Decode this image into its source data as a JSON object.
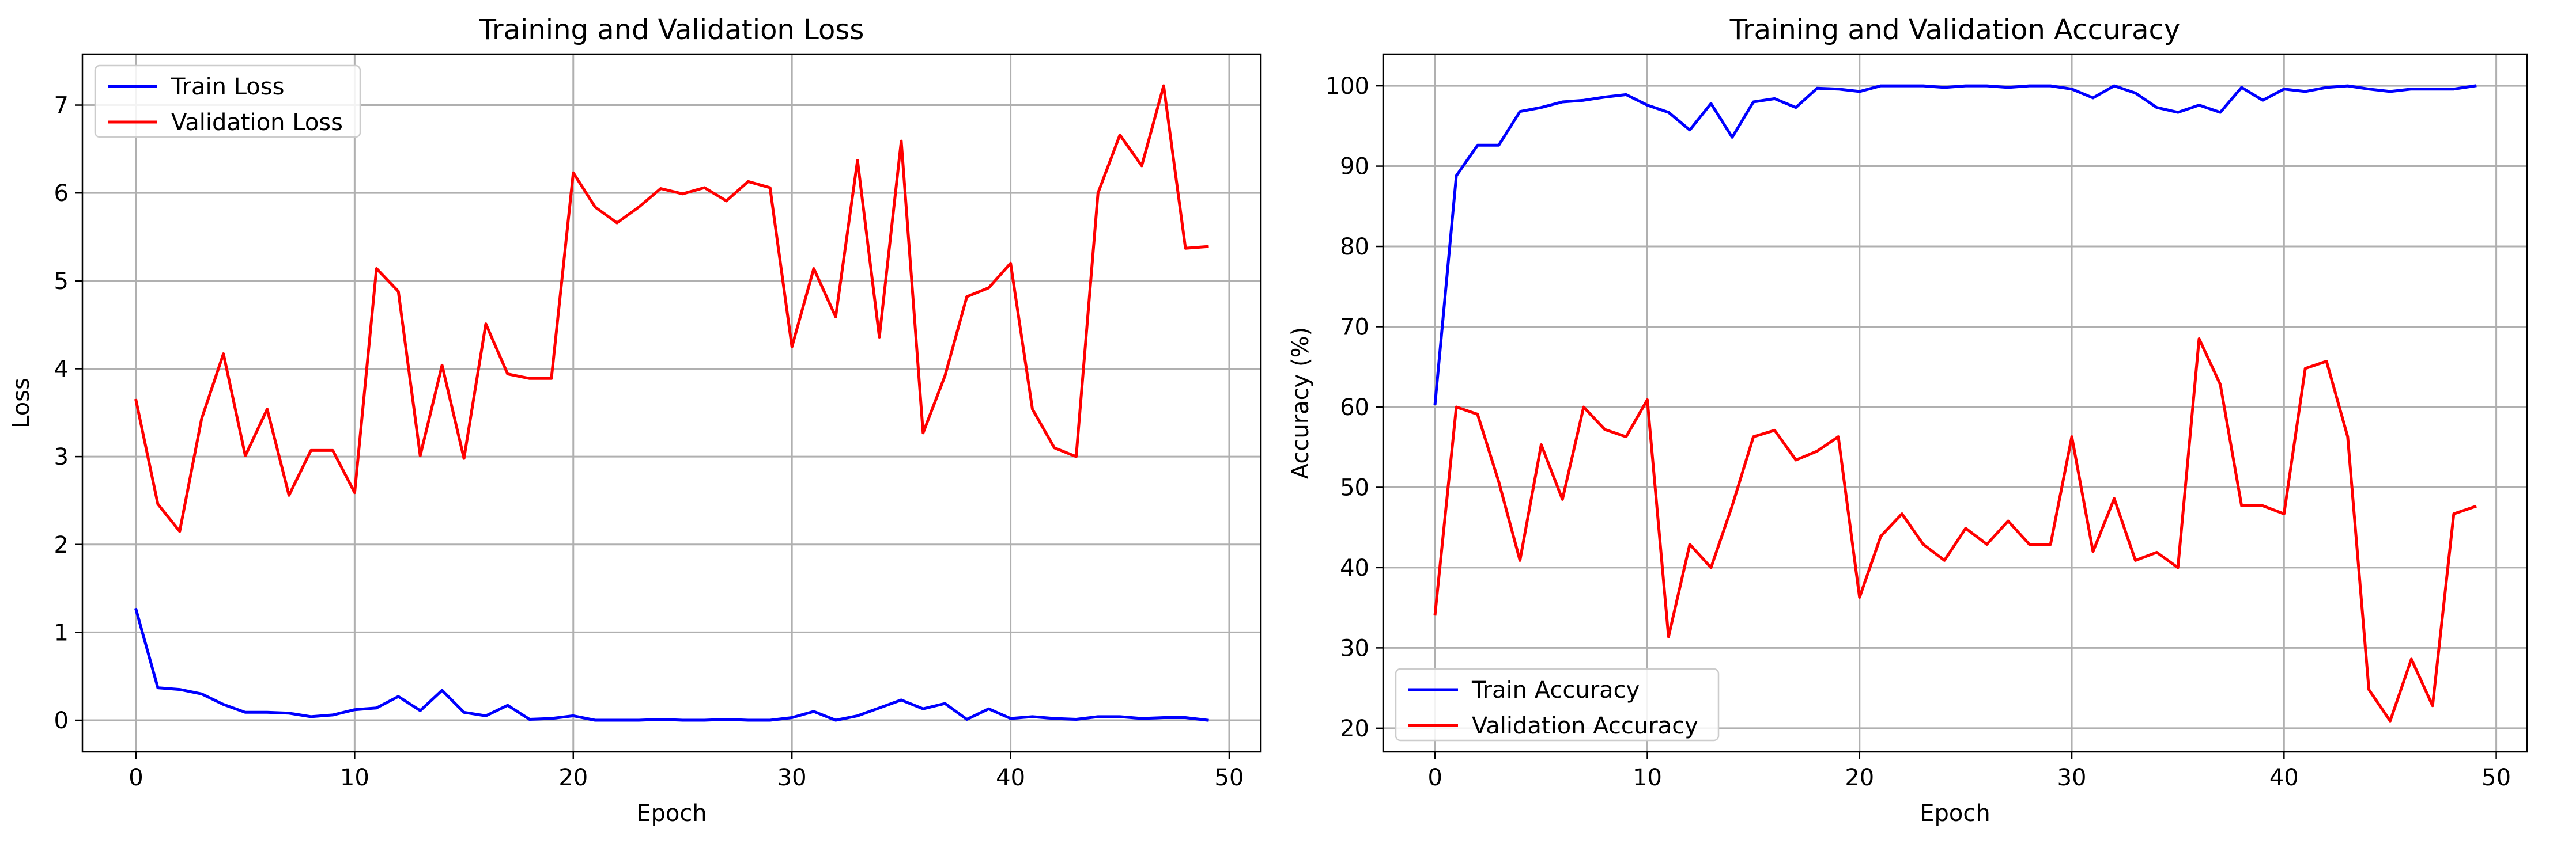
{
  "chart_data": [
    {
      "type": "line",
      "title": "Training and Validation Loss",
      "xlabel": "Epoch",
      "ylabel": "Loss",
      "xlim": [
        -2.45,
        51.45
      ],
      "ylim": [
        -0.36,
        7.58
      ],
      "xticks": [
        0,
        10,
        20,
        30,
        40,
        50
      ],
      "yticks": [
        0,
        1,
        2,
        3,
        4,
        5,
        6,
        7
      ],
      "grid": true,
      "legend": "upper-left",
      "x": [
        0,
        1,
        2,
        3,
        4,
        5,
        6,
        7,
        8,
        9,
        10,
        11,
        12,
        13,
        14,
        15,
        16,
        17,
        18,
        19,
        20,
        21,
        22,
        23,
        24,
        25,
        26,
        27,
        28,
        29,
        30,
        31,
        32,
        33,
        34,
        35,
        36,
        37,
        38,
        39,
        40,
        41,
        42,
        43,
        44,
        45,
        46,
        47,
        48,
        49
      ],
      "series": [
        {
          "name": "Train Loss",
          "color": "#0000ff",
          "values": [
            1.26,
            0.37,
            0.35,
            0.3,
            0.18,
            0.09,
            0.09,
            0.08,
            0.04,
            0.06,
            0.12,
            0.14,
            0.27,
            0.11,
            0.34,
            0.09,
            0.05,
            0.17,
            0.01,
            0.02,
            0.05,
            0.0,
            0.0,
            0.0,
            0.01,
            0.0,
            0.0,
            0.01,
            0.0,
            0.0,
            0.03,
            0.1,
            0.0,
            0.05,
            0.14,
            0.23,
            0.13,
            0.19,
            0.01,
            0.13,
            0.02,
            0.04,
            0.02,
            0.01,
            0.04,
            0.04,
            0.02,
            0.03,
            0.03,
            0.0
          ]
        },
        {
          "name": "Validation Loss",
          "color": "#ff0000",
          "values": [
            3.64,
            2.46,
            2.15,
            3.43,
            4.17,
            3.01,
            3.54,
            2.56,
            3.07,
            3.07,
            2.59,
            5.14,
            4.88,
            3.01,
            4.04,
            2.98,
            4.51,
            3.94,
            3.89,
            3.89,
            6.23,
            5.84,
            5.66,
            5.84,
            6.05,
            5.99,
            6.06,
            5.91,
            6.13,
            6.06,
            4.25,
            5.14,
            4.59,
            6.37,
            4.36,
            6.59,
            3.27,
            3.92,
            4.82,
            4.92,
            5.2,
            3.54,
            3.1,
            3.0,
            6.0,
            6.66,
            6.31,
            7.22,
            5.37,
            5.39
          ]
        }
      ]
    },
    {
      "type": "line",
      "title": "Training and Validation Accuracy",
      "xlabel": "Epoch",
      "ylabel": "Accuracy (%)",
      "xlim": [
        -2.45,
        51.45
      ],
      "ylim": [
        17.05,
        103.95
      ],
      "xticks": [
        0,
        10,
        20,
        30,
        40,
        50
      ],
      "yticks": [
        20,
        30,
        40,
        50,
        60,
        70,
        80,
        90,
        100
      ],
      "grid": true,
      "legend": "lower-left",
      "x": [
        0,
        1,
        2,
        3,
        4,
        5,
        6,
        7,
        8,
        9,
        10,
        11,
        12,
        13,
        14,
        15,
        16,
        17,
        18,
        19,
        20,
        21,
        22,
        23,
        24,
        25,
        26,
        27,
        28,
        29,
        30,
        31,
        32,
        33,
        34,
        35,
        36,
        37,
        38,
        39,
        40,
        41,
        42,
        43,
        44,
        45,
        46,
        47,
        48,
        49
      ],
      "series": [
        {
          "name": "Train Accuracy",
          "color": "#0000ff",
          "values": [
            60.4,
            88.8,
            92.6,
            92.6,
            96.8,
            97.3,
            98.0,
            98.2,
            98.6,
            98.9,
            97.6,
            96.7,
            94.5,
            97.8,
            93.6,
            98.0,
            98.4,
            97.3,
            99.7,
            99.6,
            99.3,
            100.0,
            100.0,
            100.0,
            99.8,
            100.0,
            100.0,
            99.8,
            100.0,
            100.0,
            99.6,
            98.5,
            100.0,
            99.1,
            97.3,
            96.7,
            97.6,
            96.7,
            99.8,
            98.2,
            99.6,
            99.3,
            99.8,
            100.0,
            99.6,
            99.3,
            99.6,
            99.6,
            99.6,
            100.0
          ]
        },
        {
          "name": "Validation Accuracy",
          "color": "#ff0000",
          "values": [
            34.2,
            60.0,
            59.1,
            50.7,
            40.9,
            55.3,
            48.5,
            60.0,
            57.2,
            56.3,
            60.9,
            31.4,
            42.9,
            40.0,
            47.7,
            56.3,
            57.1,
            53.4,
            54.5,
            56.3,
            36.3,
            43.9,
            46.7,
            42.9,
            40.9,
            44.9,
            42.9,
            45.8,
            42.9,
            42.9,
            56.3,
            42.0,
            48.6,
            40.9,
            41.9,
            40.0,
            68.5,
            62.8,
            47.7,
            47.7,
            46.7,
            64.8,
            65.7,
            56.3,
            24.8,
            20.9,
            28.6,
            22.8,
            46.7,
            47.6
          ]
        }
      ]
    }
  ]
}
